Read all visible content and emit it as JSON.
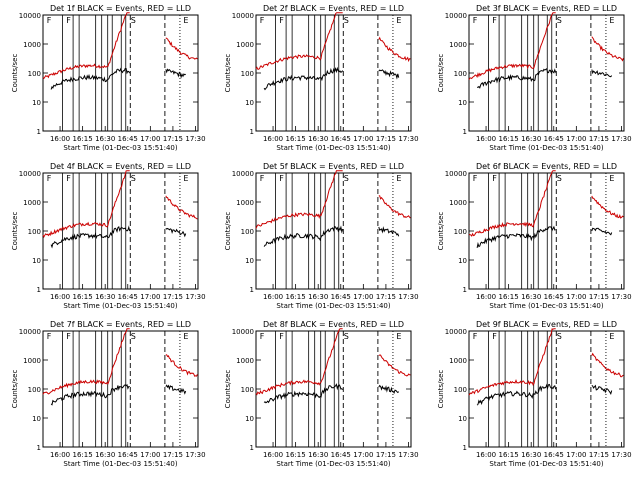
{
  "chart_data": [
    {
      "type": "line",
      "title": "Det  1f  BLACK = Events,  RED = LLD",
      "detector": "1f",
      "baseline": "med",
      "bands": [
        "F",
        "F",
        "S",
        "E"
      ]
    },
    {
      "type": "line",
      "title": "Det  2f  BLACK = Events,  RED = LLD",
      "detector": "2f",
      "baseline": "high",
      "bands": [
        "F",
        "F",
        "S",
        "E"
      ]
    },
    {
      "type": "line",
      "title": "Det  3f  BLACK = Events,  RED = LLD",
      "detector": "3f",
      "baseline": "med",
      "bands": [
        "F",
        "F",
        "S",
        "E"
      ]
    },
    {
      "type": "line",
      "title": "Det  4f  BLACK = Events,  RED = LLD",
      "detector": "4f",
      "baseline": "med",
      "bands": [
        "F",
        "F",
        "S",
        "E"
      ]
    },
    {
      "type": "line",
      "title": "Det  5f  BLACK = Events,  RED = LLD",
      "detector": "5f",
      "baseline": "high",
      "bands": [
        "F",
        "F",
        "S",
        "E"
      ]
    },
    {
      "type": "line",
      "title": "Det  6f  BLACK = Events,  RED = LLD",
      "detector": "6f",
      "baseline": "med",
      "bands": [
        "F",
        "F",
        "S",
        "E"
      ]
    },
    {
      "type": "line",
      "title": "Det  7f  BLACK = Events,  RED = LLD",
      "detector": "7f",
      "baseline": "med",
      "bands": [
        "F",
        "F",
        "S",
        "E"
      ]
    },
    {
      "type": "line",
      "title": "Det  8f  BLACK = Events,  RED = LLD",
      "detector": "8f",
      "baseline": "med",
      "bands": [
        "F",
        "F",
        "S",
        "E"
      ]
    },
    {
      "type": "line",
      "title": "Det  9f  BLACK = Events,  RED = LLD",
      "detector": "9f",
      "baseline": "med",
      "bands": [
        "F",
        "F",
        "S",
        "E"
      ]
    }
  ],
  "common": {
    "ylabel": "Counts/sec",
    "xlabel": "Start Time (01-Dec-03 15:51:40)",
    "xticks": [
      "16:00",
      "16:15",
      "16:30",
      "16:45",
      "17:00",
      "17:15",
      "17:30"
    ],
    "yticks": [
      "1",
      "10",
      "100",
      "1000",
      "10000"
    ],
    "ylim_log": [
      1,
      10000
    ],
    "xlim_min": [
      -3,
      100
    ],
    "colors": {
      "events": "#000000",
      "lld": "#cc0000"
    }
  }
}
